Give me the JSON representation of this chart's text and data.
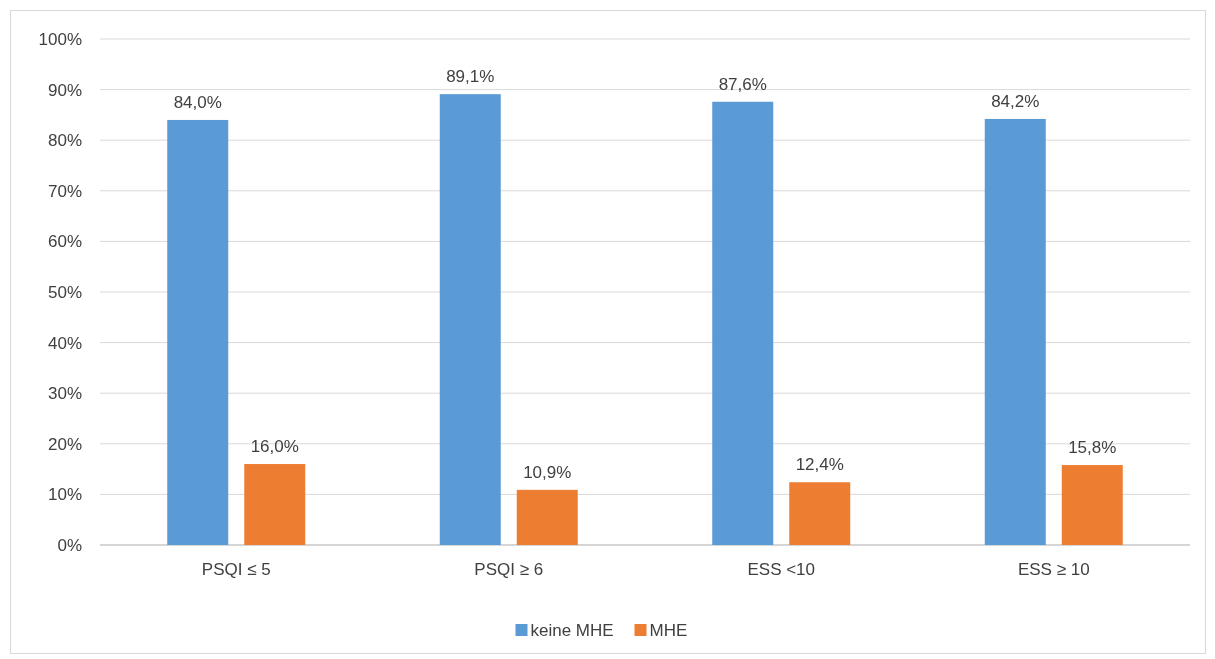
{
  "chart_data": {
    "type": "bar",
    "categories": [
      "PSQI ≤ 5",
      "PSQI ≥ 6",
      "ESS <10",
      "ESS ≥ 10"
    ],
    "series": [
      {
        "name": "keine MHE",
        "color": "#5b9bd5",
        "values": [
          84.0,
          89.1,
          87.6,
          84.2
        ],
        "value_labels": [
          "84,0%",
          "89,1%",
          "87,6%",
          "84,2%"
        ]
      },
      {
        "name": "MHE",
        "color": "#ed7d31",
        "values": [
          16.0,
          10.9,
          12.4,
          15.8
        ],
        "value_labels": [
          "16,0%",
          "10,9%",
          "12,4%",
          "15,8%"
        ]
      }
    ],
    "ylim": [
      0,
      100
    ],
    "yticks": [
      {
        "value": 0,
        "label": "0%"
      },
      {
        "value": 10,
        "label": "10%"
      },
      {
        "value": 20,
        "label": "20%"
      },
      {
        "value": 30,
        "label": "30%"
      },
      {
        "value": 40,
        "label": "40%"
      },
      {
        "value": 50,
        "label": "50%"
      },
      {
        "value": 60,
        "label": "60%"
      },
      {
        "value": 70,
        "label": "70%"
      },
      {
        "value": 80,
        "label": "80%"
      },
      {
        "value": 90,
        "label": "90%"
      },
      {
        "value": 100,
        "label": "100%"
      }
    ],
    "grid": "y",
    "legend": "bottom"
  }
}
